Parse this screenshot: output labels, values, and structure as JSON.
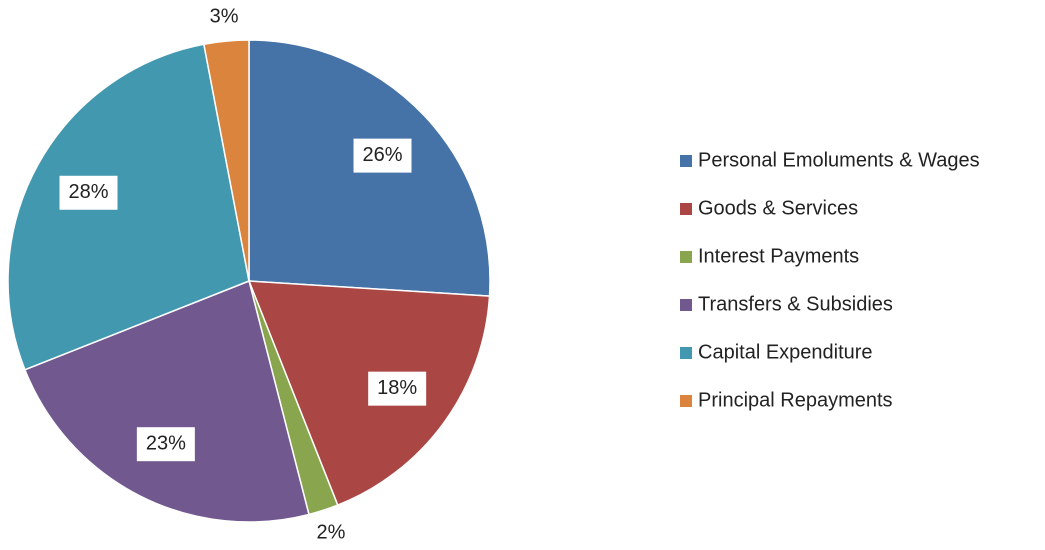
{
  "chart_data": {
    "type": "pie",
    "categories": [
      "Personal Emoluments & Wages",
      "Goods & Services",
      "Interest Payments",
      "Transfers & Subsidies",
      "Capital Expenditure",
      "Principal Repayments"
    ],
    "values": [
      26,
      18,
      2,
      23,
      28,
      3
    ],
    "value_labels": [
      "26%",
      "18%",
      "2%",
      "23%",
      "28%",
      "3%"
    ],
    "colors": [
      "#4572A7",
      "#AA4643",
      "#89A54E",
      "#71588F",
      "#4198AF",
      "#DB843D"
    ],
    "legend": "right"
  }
}
